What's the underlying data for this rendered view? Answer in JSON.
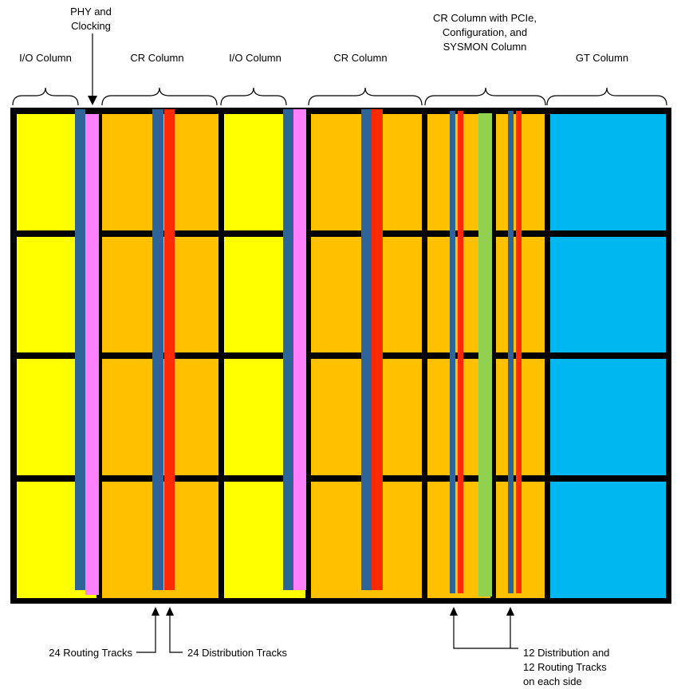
{
  "labels": {
    "io_column_1": "I/O Column",
    "phy_clocking": [
      "PHY and",
      "Clocking"
    ],
    "cr_column_1": "CR Column",
    "io_column_2": "I/O Column",
    "cr_column_2": "CR Column",
    "cr_pcie": [
      "CR Column with PCIe,",
      "Configuration, and",
      "SYSMON Column"
    ],
    "gt_column": "GT Column",
    "routing_tracks": "24 Routing Tracks",
    "distribution_tracks": "24 Distribution Tracks",
    "side_tracks": [
      "12 Distribution and",
      "12 Routing Tracks",
      "on each side"
    ]
  },
  "colors": {
    "io": "#ffff00",
    "cr": "#ffc000",
    "gt": "#00b8ef",
    "routing": "#2e6498",
    "distribution": "#ff2a00",
    "phy": "#ff80ff",
    "sysmon": "#92d050",
    "border": "#000000"
  }
}
